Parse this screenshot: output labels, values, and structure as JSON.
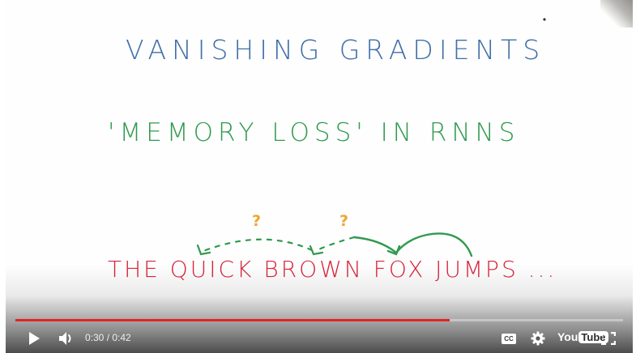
{
  "video": {
    "title_text": "VANISHING GRADIENTS",
    "subtitle_text": "'MEMORY LOSS' IN RNNS",
    "sentence_text": "THE QUICK BROWN FOX JUMPS ...",
    "question_marks": [
      "?",
      "?"
    ],
    "colors": {
      "title": "#3f6fa8",
      "subtitle": "#2f9a4e",
      "sentence": "#d9243b",
      "question": "#f0a530",
      "arrows": "#2f9a4e"
    }
  },
  "controls": {
    "progress_fraction": 0.714,
    "time_current": "0:30",
    "time_separator": " / ",
    "time_total": "0:42",
    "cc_label": "CC",
    "youtube_logo_you": "You",
    "youtube_logo_tube": "Tube",
    "icons": [
      "play-icon",
      "volume-icon",
      "cc-icon",
      "settings-icon",
      "youtube-logo",
      "fullscreen-icon"
    ],
    "progress_color": "#e52222"
  }
}
